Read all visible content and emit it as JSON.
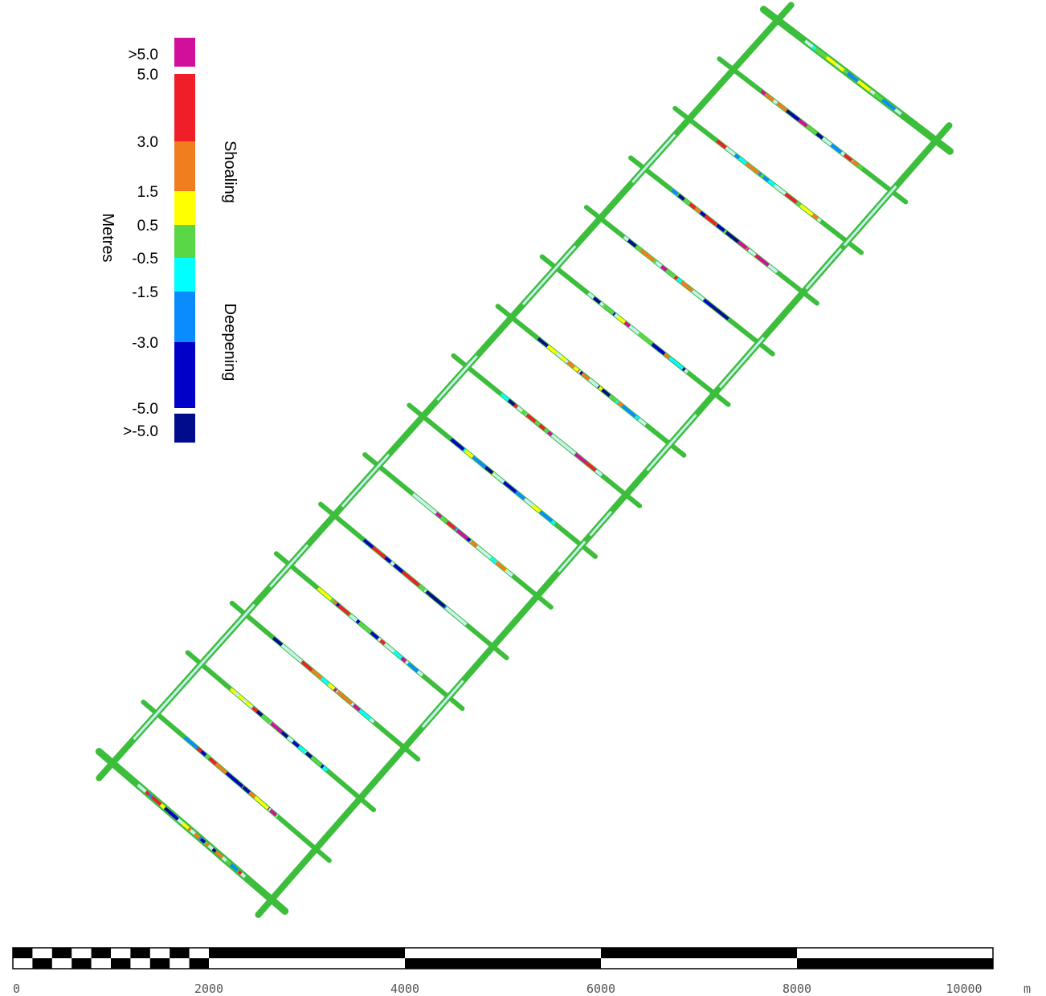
{
  "legend": {
    "unit_label": "Metres",
    "side_top_label": "Shoaling",
    "side_bottom_label": "Deepening",
    "top_overflow": {
      "label": ">5.0",
      "color": "#d0109a"
    },
    "bottom_overflow": {
      "label": ">-5.0",
      "color": "#000c8c"
    },
    "bands": [
      {
        "from": 5.0,
        "to": 3.0,
        "color": "#f01e28"
      },
      {
        "from": 3.0,
        "to": 1.5,
        "color": "#f07d1e"
      },
      {
        "from": 1.5,
        "to": 0.5,
        "color": "#ffff00"
      },
      {
        "from": 0.5,
        "to": -0.5,
        "color": "#5ad746"
      },
      {
        "from": -0.5,
        "to": -1.5,
        "color": "#00ffff"
      },
      {
        "from": -1.5,
        "to": -3.0,
        "color": "#0a8cff"
      },
      {
        "from": -3.0,
        "to": -5.0,
        "color": "#0000c8"
      }
    ],
    "tick_labels": [
      "5.0",
      "3.0",
      "1.5",
      "0.5",
      "-0.5",
      "-1.5",
      "-3.0",
      "-5.0"
    ]
  },
  "map": {
    "survey_line_color": "#3cbe3c",
    "light_line_color": "#c8f0f0",
    "line_count": 16
  },
  "scale_bar": {
    "ticks": [
      "0",
      "2000",
      "4000",
      "6000",
      "8000",
      "10000"
    ],
    "unit": "m",
    "max_value": 10000
  }
}
